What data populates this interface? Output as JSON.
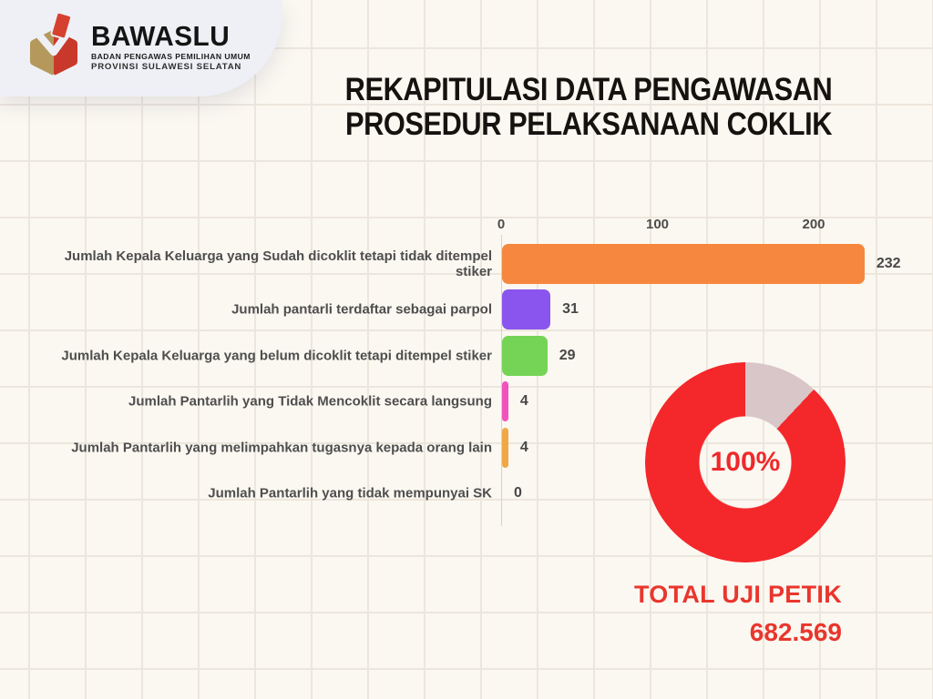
{
  "logo": {
    "brand": "BAWASLU",
    "subtitle1": "BADAN PENGAWAS PEMILIHAN UMUM",
    "subtitle2": "PROVINSI SULAWESI SELATAN",
    "colors": {
      "box_tan": "#B5985C",
      "box_red": "#C9392B",
      "ballot_red": "#D6402F"
    }
  },
  "title": {
    "line1": "REKAPITULASI DATA PENGAWASAN",
    "line2": "PROSEDUR PELAKSANAAN COKLIK"
  },
  "chart_data": [
    {
      "type": "bar",
      "orientation": "horizontal",
      "categories": [
        "Jumlah Kepala Keluarga yang Sudah dicoklit tetapi tidak ditempel stiker",
        "Jumlah pantarli terdaftar sebagai parpol",
        "Jumlah Kepala Keluarga yang belum dicoklit tetapi ditempel stiker",
        "Jumlah Pantarlih yang Tidak Mencoklit secara langsung",
        "Jumlah Pantarlih yang melimpahkan tugasnya kepada orang lain",
        "Jumlah Pantarlih yang tidak mempunyai SK"
      ],
      "values": [
        232,
        31,
        29,
        4,
        4,
        0
      ],
      "value_labels": [
        "232",
        "31",
        "29",
        "4",
        "4",
        "0"
      ],
      "bar_colors": [
        "#F5873E",
        "#8A55EE",
        "#75D455",
        "#F153BD",
        "#F0A845",
        "#F5873E"
      ],
      "x_ticks": [
        0,
        100,
        200
      ],
      "xlim": [
        0,
        235
      ],
      "grid": true,
      "legend": "none"
    },
    {
      "type": "donut",
      "slices": [
        {
          "value": 12,
          "color": "#D8C6C8"
        },
        {
          "value": 88,
          "color": "#F4272B"
        }
      ],
      "start_angle_deg": 0,
      "center_label": "100%",
      "caption": "TOTAL UJI PETIK",
      "total": "682.569"
    }
  ]
}
